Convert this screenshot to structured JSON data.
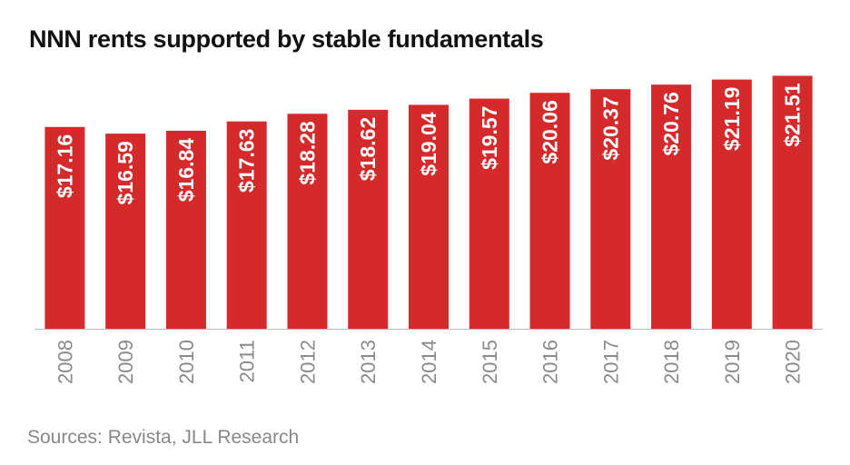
{
  "title": "NNN rents supported by stable fundamentals",
  "source": "Sources: Revista, JLL Research",
  "colors": {
    "bar": "#d42a2b",
    "axis": "#bbbbbb"
  },
  "chart_data": {
    "type": "bar",
    "title": "NNN rents supported by stable fundamentals",
    "categories": [
      "2008",
      "2009",
      "2010",
      "2011",
      "2012",
      "2013",
      "2014",
      "2015",
      "2016",
      "2017",
      "2018",
      "2019",
      "2020"
    ],
    "values": [
      17.16,
      16.59,
      16.84,
      17.63,
      18.28,
      18.62,
      19.04,
      19.57,
      20.06,
      20.37,
      20.76,
      21.19,
      21.51
    ],
    "data_labels": [
      "$17.16",
      "$16.59",
      "$16.84",
      "$17.63",
      "$18.28",
      "$18.62",
      "$19.04",
      "$19.57",
      "$20.06",
      "$20.37",
      "$20.76",
      "$21.19",
      "$21.51"
    ],
    "xlabel": "",
    "ylabel": "",
    "grid": false
  }
}
